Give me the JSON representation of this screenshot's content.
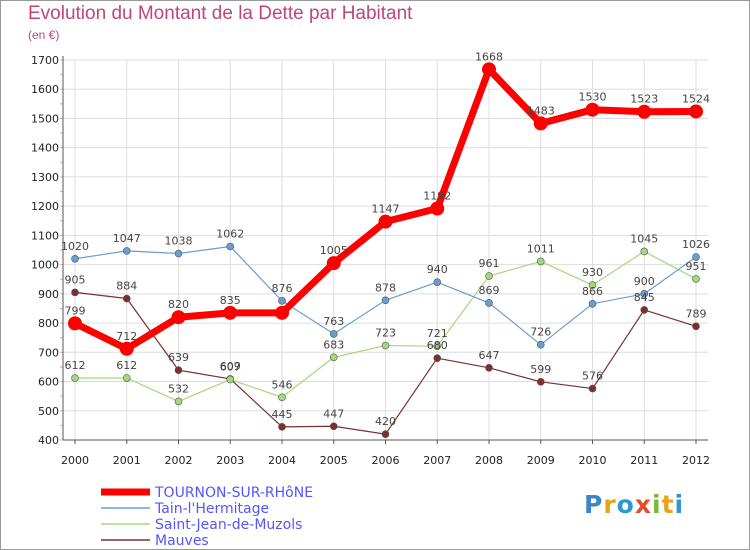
{
  "header": {
    "title": "Evolution du Montant de la Dette par Habitant",
    "subtitle": "(en €)"
  },
  "logo": {
    "text": "Proxiti",
    "letter_colors": [
      "#3a86c8",
      "#e8a21e",
      "#2c97d4",
      "#e24d2b",
      "#7ab83a",
      "#e8a21e",
      "#2c97d4"
    ]
  },
  "chart_data": {
    "type": "line",
    "title": "Evolution du Montant de la Dette par Habitant",
    "subtitle": "(en €)",
    "xlabel": "",
    "ylabel": "",
    "x": [
      "2000",
      "2001",
      "2002",
      "2003",
      "2004",
      "2005",
      "2006",
      "2007",
      "2008",
      "2009",
      "2010",
      "2011",
      "2012"
    ],
    "ylim": [
      400,
      1700
    ],
    "yticks": [
      "400",
      "500",
      "600",
      "700",
      "800",
      "900",
      "1000",
      "1100",
      "1200",
      "1300",
      "1400",
      "1500",
      "1600",
      "1700"
    ],
    "grid": true,
    "legend_position": "bottom-left",
    "series": [
      {
        "name": "TOURNON-SUR-RHôNE",
        "color": "#ff0000",
        "width": 7,
        "marker_radius": 7,
        "values": [
          799,
          712,
          820,
          835,
          835,
          1005,
          1147,
          1192,
          1668,
          1483,
          1530,
          1523,
          1524
        ]
      },
      {
        "name": "Tain-l'Hermitage",
        "color": "#6a9dd0",
        "width": 1.2,
        "marker_radius": 3.5,
        "values": [
          1020,
          1047,
          1038,
          1062,
          876,
          763,
          878,
          940,
          869,
          726,
          866,
          900,
          1026
        ]
      },
      {
        "name": "Saint-Jean-de-Muzols",
        "color": "#a2d97a",
        "width": 1.2,
        "marker_radius": 3.5,
        "values": [
          612,
          612,
          532,
          607,
          546,
          683,
          723,
          721,
          961,
          1011,
          930,
          1045,
          951
        ]
      },
      {
        "name": "Mauves",
        "color": "#7d2f2f",
        "width": 1.2,
        "marker_radius": 3.5,
        "values": [
          905,
          884,
          639,
          609,
          445,
          447,
          420,
          680,
          647,
          599,
          576,
          845,
          789
        ]
      }
    ],
    "data_labels": [
      [
        "799",
        "712",
        "820",
        "835",
        "",
        "1005",
        "1147",
        "1192",
        "1668",
        "1483",
        "1530",
        "1523",
        "1524"
      ],
      [
        "1020",
        "1047",
        "1038",
        "1062",
        "876",
        "763",
        "878",
        "940",
        "869",
        "726",
        "866",
        "900",
        "1026"
      ],
      [
        "612",
        "612",
        "532",
        "607",
        "546",
        "683",
        "723",
        "721",
        "961",
        "1011",
        "930",
        "1045",
        "951"
      ],
      [
        "905",
        "884",
        "639",
        "609",
        "445",
        "447",
        "420",
        "680",
        "647",
        "599",
        "576",
        "845",
        "789"
      ]
    ]
  }
}
